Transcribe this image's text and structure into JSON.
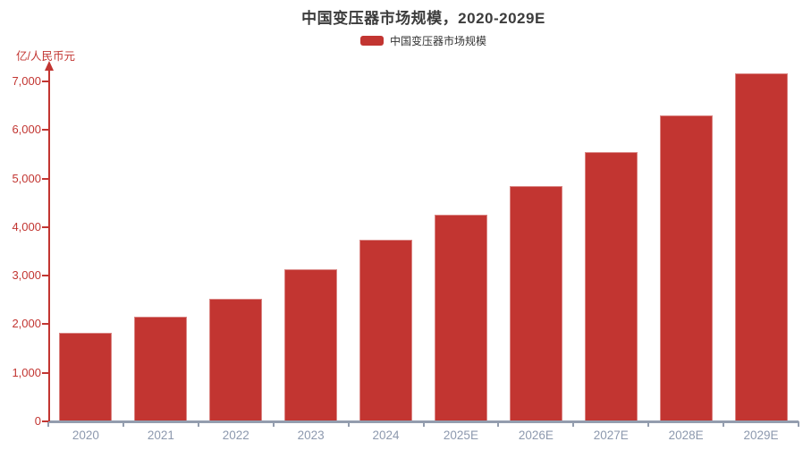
{
  "header": {
    "title": "中国变压器市场规模，2020-2029E"
  },
  "legend": {
    "items": [
      {
        "label": "中国变压器市场规模",
        "color": "#c23531"
      }
    ]
  },
  "chart_data": {
    "type": "bar",
    "title": "中国变压器市场规模，2020-2029E",
    "series_name": "中国变压器市场规模",
    "ylabel": "亿/人民币元",
    "xlabel": "",
    "categories": [
      "2020",
      "2021",
      "2022",
      "2023",
      "2024",
      "2025E",
      "2026E",
      "2027E",
      "2028E",
      "2029E"
    ],
    "values": [
      1820,
      2150,
      2530,
      3140,
      3740,
      4260,
      4850,
      5540,
      6300,
      7160
    ],
    "ylim": [
      0,
      7000
    ],
    "ytick_labels": [
      "0",
      "1,000",
      "2,000",
      "3,000",
      "4,000",
      "5,000",
      "6,000",
      "7,000"
    ],
    "grid": false,
    "legend_position": "top-center",
    "colors": {
      "bar": "#c23531",
      "bar_edge_highlight": "rgba(255,255,255,0.4)",
      "y_axis": "#c23531",
      "x_axis": "#939dae",
      "x_tick_label": "#8d99ae",
      "title": "#3c3c3c",
      "legend_text": "#333333"
    }
  }
}
